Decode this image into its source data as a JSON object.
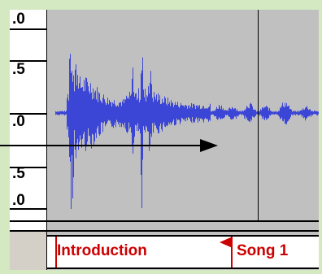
{
  "ruler": {
    "labels": [
      ".0",
      ".5",
      ".0",
      ".5",
      ".0"
    ]
  },
  "label_track": {
    "labels": [
      "Introduction",
      "Song 1"
    ]
  },
  "colors": {
    "background": "#d4e8c2",
    "waveform": "#3c46d6",
    "track_bg": "#c0c0c0",
    "label_text": "#cc0000"
  }
}
